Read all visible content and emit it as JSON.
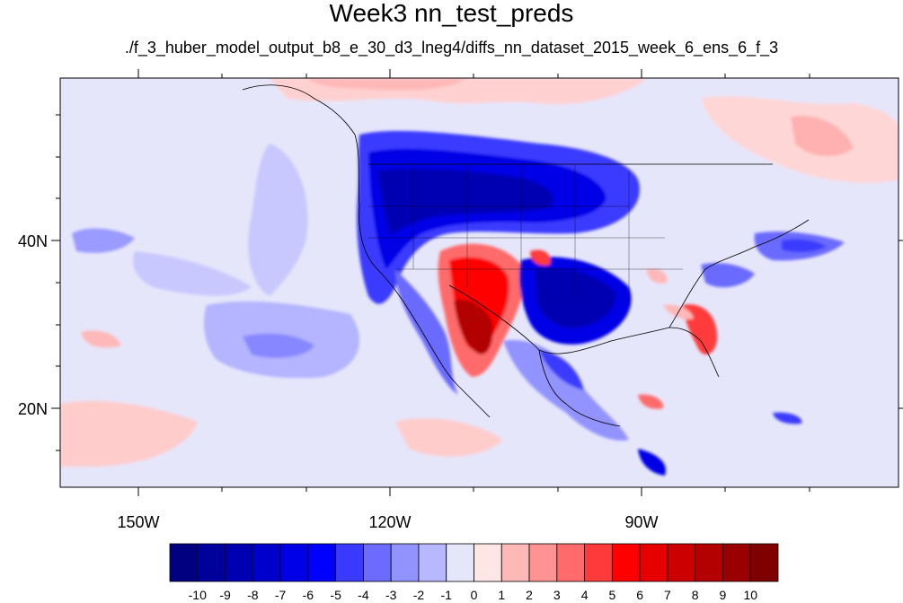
{
  "title": "Week3 nn_test_preds",
  "subtitle": "./f_3_huber_model_output_b8_e_30_d3_lneg4/diffs_nn_dataset_2015_week_6_ens_6_f_3",
  "axes": {
    "x_ticks": [
      "150W",
      "120W",
      "90W"
    ],
    "y_ticks": [
      "40N",
      "20N"
    ]
  },
  "colorbar": {
    "labels": [
      "-10",
      "-9",
      "-8",
      "-7",
      "-6",
      "-5",
      "-4",
      "-3",
      "-2",
      "-1",
      "0",
      "1",
      "2",
      "3",
      "4",
      "5",
      "6",
      "7",
      "8",
      "9",
      "10"
    ],
    "colors": [
      "#000080",
      "#00009a",
      "#0000b3",
      "#0000cd",
      "#0000e6",
      "#0000ff",
      "#3a3aff",
      "#6b6bff",
      "#9393ff",
      "#b8b8ff",
      "#e6e6fb",
      "#ffe6e6",
      "#ffb8b8",
      "#ff9393",
      "#ff6b6b",
      "#ff3a3a",
      "#ff0000",
      "#e60000",
      "#cd0000",
      "#b30000",
      "#9a0000",
      "#800000"
    ]
  },
  "colors": {
    "background": "#e6e6fb"
  }
}
